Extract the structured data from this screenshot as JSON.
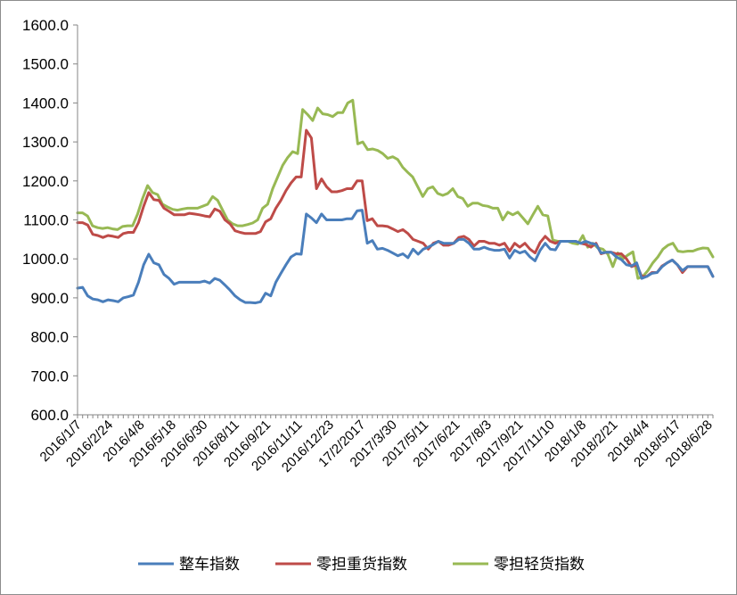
{
  "chart_data": {
    "type": "line",
    "title": "",
    "xlabel": "",
    "ylabel": "",
    "ylim": [
      600,
      1600
    ],
    "y_ticks": [
      "600.0",
      "700.0",
      "800.0",
      "900.0",
      "1000.0",
      "1100.0",
      "1200.0",
      "1300.0",
      "1400.0",
      "1500.0",
      "1600.0"
    ],
    "x_tick_labels": [
      "2016/1/7",
      "2016/2/24",
      "2016/4/8",
      "2016/5/18",
      "2016/6/30",
      "2016/8/11",
      "2016/9/21",
      "2016/11/11",
      "2016/12/23",
      "17/2/2017",
      "2017/3/30",
      "2017/5/11",
      "2017/6/21",
      "2017/8/3",
      "2017/9/21",
      "2017/11/10",
      "2018/1/8",
      "2018/2/21",
      "2018/4/4",
      "2018/5/17",
      "2018/6/28"
    ],
    "grid": false,
    "legend_position": "bottom",
    "series": [
      {
        "name": "整车指数",
        "color": "#4a7ebb",
        "values": [
          925,
          927,
          905,
          897,
          895,
          890,
          895,
          893,
          890,
          900,
          903,
          907,
          940,
          985,
          1012,
          990,
          985,
          960,
          950,
          935,
          940,
          940,
          940,
          940,
          940,
          943,
          938,
          950,
          945,
          933,
          920,
          905,
          895,
          888,
          888,
          887,
          890,
          912,
          905,
          940,
          963,
          985,
          1005,
          1013,
          1012,
          1115,
          1105,
          1093,
          1115,
          1100,
          1100,
          1100,
          1100,
          1103,
          1103,
          1123,
          1125,
          1040,
          1047,
          1025,
          1027,
          1022,
          1015,
          1008,
          1013,
          1003,
          1025,
          1012,
          1025,
          1030,
          1037,
          1045,
          1040,
          1040,
          1040,
          1050,
          1050,
          1040,
          1025,
          1025,
          1030,
          1025,
          1022,
          1022,
          1025,
          1002,
          1022,
          1015,
          1020,
          1005,
          995,
          1022,
          1040,
          1025,
          1023,
          1045,
          1045,
          1045,
          1045,
          1040,
          1045,
          1040,
          1037,
          1015,
          1017,
          1017,
          1005,
          998,
          985,
          982,
          990,
          950,
          955,
          963,
          965,
          980,
          990,
          997,
          985,
          970,
          980,
          980,
          980,
          980,
          980,
          955
        ]
      },
      {
        "name": "零担重货指数",
        "color": "#be4b48",
        "values": [
          1093,
          1093,
          1087,
          1063,
          1060,
          1055,
          1060,
          1058,
          1055,
          1065,
          1068,
          1068,
          1093,
          1135,
          1170,
          1152,
          1150,
          1130,
          1122,
          1113,
          1113,
          1113,
          1117,
          1115,
          1113,
          1110,
          1108,
          1128,
          1122,
          1100,
          1090,
          1072,
          1068,
          1065,
          1065,
          1065,
          1070,
          1095,
          1103,
          1130,
          1150,
          1175,
          1195,
          1210,
          1210,
          1330,
          1310,
          1180,
          1205,
          1185,
          1172,
          1172,
          1175,
          1180,
          1180,
          1200,
          1200,
          1098,
          1103,
          1085,
          1085,
          1083,
          1077,
          1070,
          1075,
          1065,
          1050,
          1045,
          1040,
          1025,
          1040,
          1045,
          1035,
          1035,
          1040,
          1055,
          1058,
          1050,
          1033,
          1045,
          1045,
          1040,
          1040,
          1035,
          1040,
          1020,
          1040,
          1030,
          1040,
          1025,
          1015,
          1042,
          1058,
          1045,
          1040,
          1045,
          1045,
          1045,
          1045,
          1040,
          1037,
          1030,
          1040,
          1013,
          1017,
          1017,
          1013,
          1013,
          1000,
          980,
          985,
          955,
          955,
          965,
          965,
          982,
          990,
          997,
          985,
          965,
          980,
          980,
          980,
          980,
          980,
          955
        ]
      },
      {
        "name": "零担轻货指数",
        "color": "#98b954",
        "values": [
          1118,
          1118,
          1110,
          1085,
          1080,
          1078,
          1080,
          1077,
          1075,
          1083,
          1085,
          1085,
          1115,
          1155,
          1188,
          1170,
          1165,
          1140,
          1133,
          1127,
          1125,
          1128,
          1130,
          1130,
          1130,
          1135,
          1140,
          1160,
          1150,
          1125,
          1100,
          1090,
          1085,
          1085,
          1088,
          1092,
          1100,
          1130,
          1140,
          1180,
          1210,
          1240,
          1260,
          1275,
          1270,
          1383,
          1370,
          1355,
          1387,
          1372,
          1370,
          1365,
          1375,
          1375,
          1400,
          1407,
          1295,
          1300,
          1280,
          1282,
          1278,
          1270,
          1258,
          1262,
          1255,
          1235,
          1222,
          1210,
          1185,
          1160,
          1180,
          1185,
          1168,
          1163,
          1168,
          1180,
          1160,
          1155,
          1135,
          1143,
          1143,
          1137,
          1135,
          1130,
          1130,
          1100,
          1120,
          1113,
          1120,
          1105,
          1090,
          1113,
          1135,
          1113,
          1110,
          1048,
          1045,
          1045,
          1045,
          1040,
          1038,
          1060,
          1030,
          1040,
          1028,
          1025,
          1012,
          980,
          1015,
          1000,
          1010,
          1018,
          950,
          955,
          970,
          990,
          1005,
          1025,
          1035,
          1040,
          1020,
          1018,
          1020,
          1020,
          1025,
          1028,
          1027,
          1005
        ]
      }
    ]
  }
}
